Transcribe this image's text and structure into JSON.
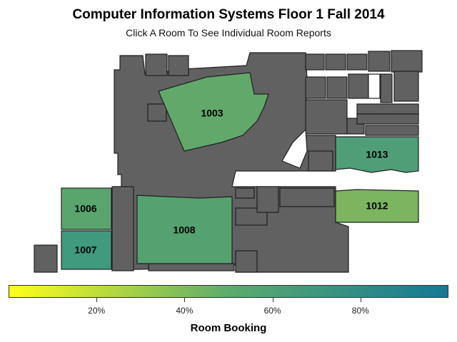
{
  "title": "Computer Information Systems Floor 1 Fall 2014",
  "subtitle": "Click A Room To See Individual Room Reports",
  "legend": {
    "title": "Room Booking",
    "ticks": [
      "20%",
      "40%",
      "60%",
      "80%"
    ],
    "tick_values": [
      0.2,
      0.4,
      0.6,
      0.8
    ],
    "range": [
      0,
      1
    ],
    "colors": {
      "low": "#ffff1a",
      "mid": "#5cab6d",
      "high": "#147896"
    }
  },
  "rooms": [
    {
      "id": "1003",
      "booking": 0.57,
      "color": "#63a86b"
    },
    {
      "id": "1013",
      "booking": 0.65,
      "color": "#4f9e77"
    },
    {
      "id": "1012",
      "booking": 0.46,
      "color": "#7bb560"
    },
    {
      "id": "1006",
      "booking": 0.57,
      "color": "#5aa56e"
    },
    {
      "id": "1008",
      "booking": 0.62,
      "color": "#55a270"
    },
    {
      "id": "1007",
      "booking": 0.7,
      "color": "#3f9a7e"
    }
  ],
  "colors": {
    "unbooked_room": "#616161",
    "outline": "#1f1f1f"
  }
}
